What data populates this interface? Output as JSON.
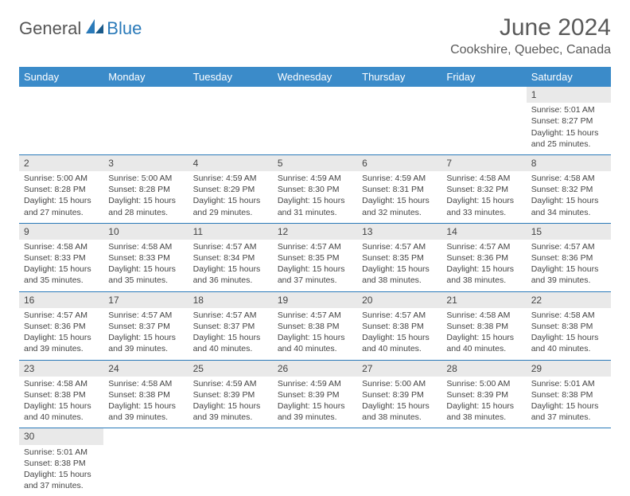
{
  "brand": {
    "main": "General",
    "accent": "Blue"
  },
  "title": "June 2024",
  "location": "Cookshire, Quebec, Canada",
  "colors": {
    "header_bg": "#3b8bc9",
    "border": "#2a7ab9",
    "daystrip": "#e9e9e9",
    "text": "#444444",
    "title_text": "#5a5a5a"
  },
  "weekdays": [
    "Sunday",
    "Monday",
    "Tuesday",
    "Wednesday",
    "Thursday",
    "Friday",
    "Saturday"
  ],
  "weeks": [
    [
      null,
      null,
      null,
      null,
      null,
      null,
      {
        "n": "1",
        "sr": "Sunrise: 5:01 AM",
        "ss": "Sunset: 8:27 PM",
        "dl": "Daylight: 15 hours and 25 minutes."
      }
    ],
    [
      {
        "n": "2",
        "sr": "Sunrise: 5:00 AM",
        "ss": "Sunset: 8:28 PM",
        "dl": "Daylight: 15 hours and 27 minutes."
      },
      {
        "n": "3",
        "sr": "Sunrise: 5:00 AM",
        "ss": "Sunset: 8:28 PM",
        "dl": "Daylight: 15 hours and 28 minutes."
      },
      {
        "n": "4",
        "sr": "Sunrise: 4:59 AM",
        "ss": "Sunset: 8:29 PM",
        "dl": "Daylight: 15 hours and 29 minutes."
      },
      {
        "n": "5",
        "sr": "Sunrise: 4:59 AM",
        "ss": "Sunset: 8:30 PM",
        "dl": "Daylight: 15 hours and 31 minutes."
      },
      {
        "n": "6",
        "sr": "Sunrise: 4:59 AM",
        "ss": "Sunset: 8:31 PM",
        "dl": "Daylight: 15 hours and 32 minutes."
      },
      {
        "n": "7",
        "sr": "Sunrise: 4:58 AM",
        "ss": "Sunset: 8:32 PM",
        "dl": "Daylight: 15 hours and 33 minutes."
      },
      {
        "n": "8",
        "sr": "Sunrise: 4:58 AM",
        "ss": "Sunset: 8:32 PM",
        "dl": "Daylight: 15 hours and 34 minutes."
      }
    ],
    [
      {
        "n": "9",
        "sr": "Sunrise: 4:58 AM",
        "ss": "Sunset: 8:33 PM",
        "dl": "Daylight: 15 hours and 35 minutes."
      },
      {
        "n": "10",
        "sr": "Sunrise: 4:58 AM",
        "ss": "Sunset: 8:33 PM",
        "dl": "Daylight: 15 hours and 35 minutes."
      },
      {
        "n": "11",
        "sr": "Sunrise: 4:57 AM",
        "ss": "Sunset: 8:34 PM",
        "dl": "Daylight: 15 hours and 36 minutes."
      },
      {
        "n": "12",
        "sr": "Sunrise: 4:57 AM",
        "ss": "Sunset: 8:35 PM",
        "dl": "Daylight: 15 hours and 37 minutes."
      },
      {
        "n": "13",
        "sr": "Sunrise: 4:57 AM",
        "ss": "Sunset: 8:35 PM",
        "dl": "Daylight: 15 hours and 38 minutes."
      },
      {
        "n": "14",
        "sr": "Sunrise: 4:57 AM",
        "ss": "Sunset: 8:36 PM",
        "dl": "Daylight: 15 hours and 38 minutes."
      },
      {
        "n": "15",
        "sr": "Sunrise: 4:57 AM",
        "ss": "Sunset: 8:36 PM",
        "dl": "Daylight: 15 hours and 39 minutes."
      }
    ],
    [
      {
        "n": "16",
        "sr": "Sunrise: 4:57 AM",
        "ss": "Sunset: 8:36 PM",
        "dl": "Daylight: 15 hours and 39 minutes."
      },
      {
        "n": "17",
        "sr": "Sunrise: 4:57 AM",
        "ss": "Sunset: 8:37 PM",
        "dl": "Daylight: 15 hours and 39 minutes."
      },
      {
        "n": "18",
        "sr": "Sunrise: 4:57 AM",
        "ss": "Sunset: 8:37 PM",
        "dl": "Daylight: 15 hours and 40 minutes."
      },
      {
        "n": "19",
        "sr": "Sunrise: 4:57 AM",
        "ss": "Sunset: 8:38 PM",
        "dl": "Daylight: 15 hours and 40 minutes."
      },
      {
        "n": "20",
        "sr": "Sunrise: 4:57 AM",
        "ss": "Sunset: 8:38 PM",
        "dl": "Daylight: 15 hours and 40 minutes."
      },
      {
        "n": "21",
        "sr": "Sunrise: 4:58 AM",
        "ss": "Sunset: 8:38 PM",
        "dl": "Daylight: 15 hours and 40 minutes."
      },
      {
        "n": "22",
        "sr": "Sunrise: 4:58 AM",
        "ss": "Sunset: 8:38 PM",
        "dl": "Daylight: 15 hours and 40 minutes."
      }
    ],
    [
      {
        "n": "23",
        "sr": "Sunrise: 4:58 AM",
        "ss": "Sunset: 8:38 PM",
        "dl": "Daylight: 15 hours and 40 minutes."
      },
      {
        "n": "24",
        "sr": "Sunrise: 4:58 AM",
        "ss": "Sunset: 8:38 PM",
        "dl": "Daylight: 15 hours and 39 minutes."
      },
      {
        "n": "25",
        "sr": "Sunrise: 4:59 AM",
        "ss": "Sunset: 8:39 PM",
        "dl": "Daylight: 15 hours and 39 minutes."
      },
      {
        "n": "26",
        "sr": "Sunrise: 4:59 AM",
        "ss": "Sunset: 8:39 PM",
        "dl": "Daylight: 15 hours and 39 minutes."
      },
      {
        "n": "27",
        "sr": "Sunrise: 5:00 AM",
        "ss": "Sunset: 8:39 PM",
        "dl": "Daylight: 15 hours and 38 minutes."
      },
      {
        "n": "28",
        "sr": "Sunrise: 5:00 AM",
        "ss": "Sunset: 8:39 PM",
        "dl": "Daylight: 15 hours and 38 minutes."
      },
      {
        "n": "29",
        "sr": "Sunrise: 5:01 AM",
        "ss": "Sunset: 8:38 PM",
        "dl": "Daylight: 15 hours and 37 minutes."
      }
    ],
    [
      {
        "n": "30",
        "sr": "Sunrise: 5:01 AM",
        "ss": "Sunset: 8:38 PM",
        "dl": "Daylight: 15 hours and 37 minutes."
      },
      null,
      null,
      null,
      null,
      null,
      null
    ]
  ]
}
